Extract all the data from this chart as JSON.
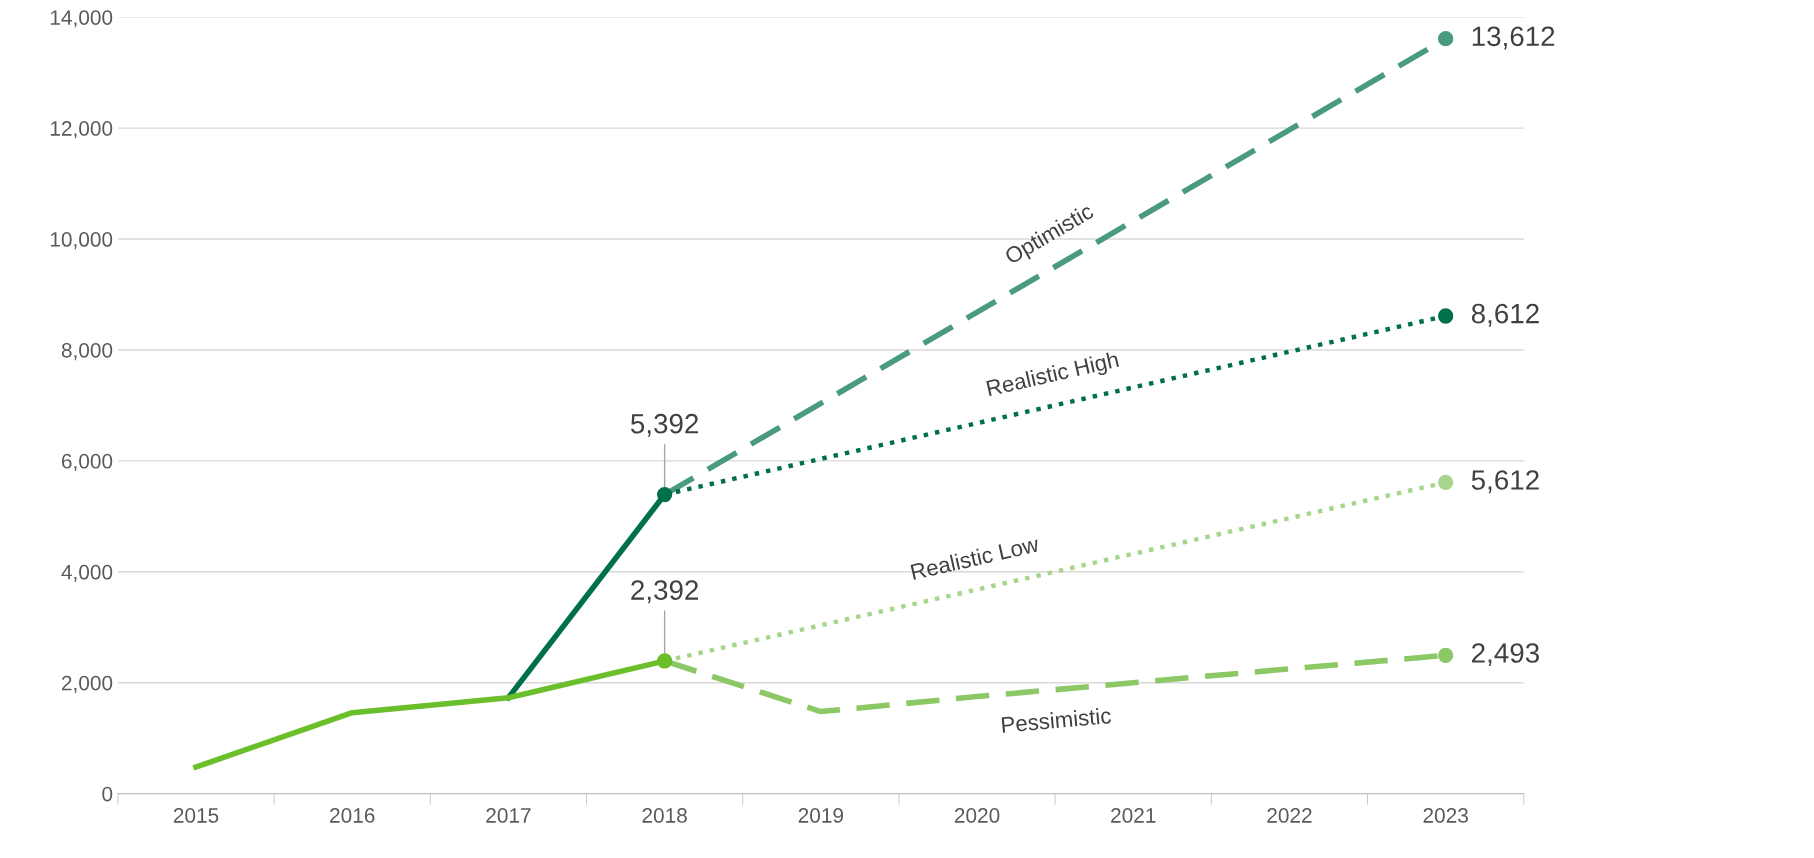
{
  "chart_data": {
    "type": "line",
    "categories": [
      "2015",
      "2016",
      "2017",
      "2018",
      "2019",
      "2020",
      "2021",
      "2022",
      "2023"
    ],
    "series": [
      {
        "color": "#00704a",
        "line_style": "solid",
        "values": [
          null,
          null,
          1730,
          5392,
          null,
          null,
          null,
          null,
          null
        ],
        "value_labels": [
          null,
          null,
          null,
          "5,392",
          null,
          null,
          null,
          null,
          null
        ]
      },
      {
        "color": "#6abf2a",
        "line_style": "solid",
        "values": [
          480,
          1460,
          1730,
          2392,
          null,
          null,
          null,
          null,
          null
        ],
        "value_labels": [
          null,
          null,
          null,
          "2,392",
          null,
          null,
          null,
          null,
          null
        ]
      },
      {
        "name": "Optimistic",
        "color": "#4a9a7e",
        "line_style": "dashed",
        "values": [
          null,
          null,
          null,
          5392,
          null,
          null,
          null,
          null,
          13612
        ],
        "value_labels": [
          null,
          null,
          null,
          null,
          null,
          null,
          null,
          null,
          "13,612"
        ]
      },
      {
        "name": "Realistic High",
        "color": "#00704a",
        "line_style": "dotted",
        "values": [
          null,
          null,
          null,
          5392,
          null,
          null,
          null,
          null,
          8612
        ],
        "value_labels": [
          null,
          null,
          null,
          null,
          null,
          null,
          null,
          null,
          "8,612"
        ]
      },
      {
        "name": "Realistic Low",
        "color": "#a8d58c",
        "line_style": "dotted",
        "values": [
          null,
          null,
          null,
          2392,
          null,
          null,
          null,
          null,
          5612
        ],
        "value_labels": [
          null,
          null,
          null,
          null,
          null,
          null,
          null,
          null,
          "5,612"
        ]
      },
      {
        "name": "Pessimistic",
        "color": "#8cc866",
        "line_style": "dashed",
        "values": [
          null,
          null,
          null,
          2392,
          1480,
          1750,
          2000,
          2250,
          2493
        ],
        "value_labels": [
          null,
          null,
          null,
          null,
          null,
          null,
          null,
          null,
          "2,493"
        ]
      }
    ],
    "ylim": [
      0,
      14000
    ],
    "yticks": [
      {
        "value": 0,
        "label": "0"
      },
      {
        "value": 2000,
        "label": "2,000"
      },
      {
        "value": 4000,
        "label": "4,000"
      },
      {
        "value": 6000,
        "label": "6,000"
      },
      {
        "value": 8000,
        "label": "8,000"
      },
      {
        "value": 10000,
        "label": "10,000"
      },
      {
        "value": 12000,
        "label": "12,000"
      },
      {
        "value": 14000,
        "label": "14,000"
      }
    ],
    "grid": "y",
    "legend": false
  }
}
